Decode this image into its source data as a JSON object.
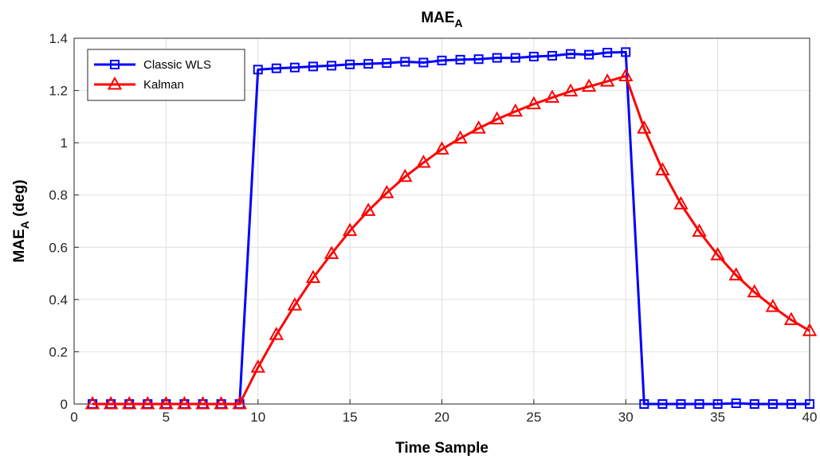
{
  "chart_data": {
    "type": "line",
    "title": "MAE",
    "title_subscript": "A",
    "xlabel": "Time Sample",
    "ylabel": "MAE",
    "ylabel_subscript": "A",
    "ylabel_suffix": " (deg)",
    "xlim": [
      0,
      40
    ],
    "ylim": [
      0,
      1.4
    ],
    "xticks": [
      0,
      5,
      10,
      15,
      20,
      25,
      30,
      35,
      40
    ],
    "yticks": [
      0,
      0.2,
      0.4,
      0.6,
      0.8,
      1,
      1.2,
      1.4
    ],
    "xtick_labels": [
      "0",
      "5",
      "10",
      "15",
      "20",
      "25",
      "30",
      "35",
      "40"
    ],
    "ytick_labels": [
      "0",
      "0.2",
      "0.4",
      "0.6",
      "0.8",
      "1",
      "1.2",
      "1.4"
    ],
    "grid": true,
    "legend_position": "top-left",
    "x": [
      1,
      2,
      3,
      4,
      5,
      6,
      7,
      8,
      9,
      10,
      11,
      12,
      13,
      14,
      15,
      16,
      17,
      18,
      19,
      20,
      21,
      22,
      23,
      24,
      25,
      26,
      27,
      28,
      29,
      30,
      31,
      32,
      33,
      34,
      35,
      36,
      37,
      38,
      39,
      40
    ],
    "series": [
      {
        "name": "Classic WLS",
        "color": "#0000ff",
        "marker": "square",
        "values": [
          0,
          0,
          0,
          0,
          0,
          0,
          0,
          0,
          0,
          1.28,
          1.285,
          1.288,
          1.292,
          1.295,
          1.3,
          1.302,
          1.305,
          1.31,
          1.307,
          1.315,
          1.318,
          1.32,
          1.325,
          1.325,
          1.33,
          1.333,
          1.34,
          1.337,
          1.345,
          1.347,
          0,
          0,
          0,
          0,
          0,
          0.003,
          0,
          0,
          0,
          0
        ]
      },
      {
        "name": "Kalman",
        "color": "#ff0000",
        "marker": "triangle",
        "values": [
          0,
          0,
          0,
          0,
          0,
          0,
          0,
          0,
          0,
          0.14,
          0.265,
          0.378,
          0.483,
          0.575,
          0.663,
          0.74,
          0.808,
          0.87,
          0.924,
          0.975,
          1.017,
          1.055,
          1.09,
          1.12,
          1.148,
          1.173,
          1.197,
          1.215,
          1.235,
          1.255,
          1.055,
          0.895,
          0.765,
          0.66,
          0.57,
          0.493,
          0.428,
          0.372,
          0.322,
          0.28
        ]
      }
    ]
  }
}
